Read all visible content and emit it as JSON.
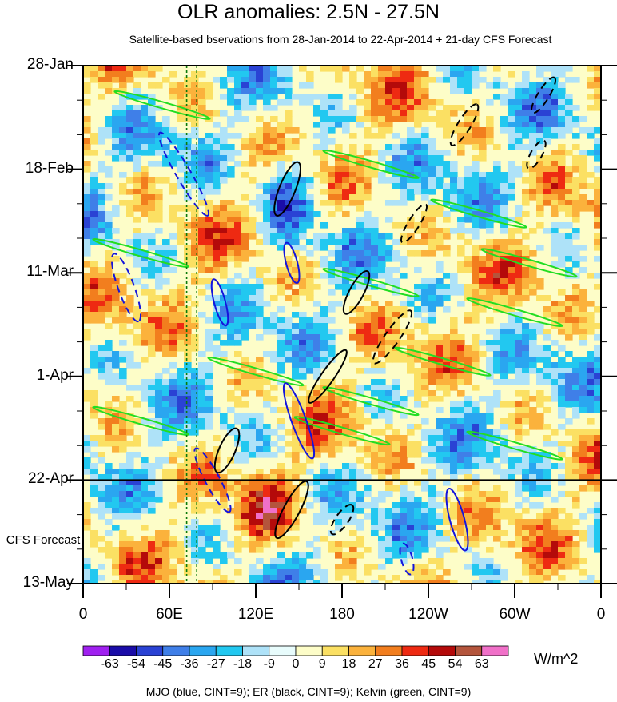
{
  "chart_data": {
    "type": "heatmap",
    "title": "OLR anomalies: 2.5N - 27.5N",
    "subtitle": "Satellite-based bservations from 28-Jan-2014 to 22-Apr-2014 + 21-day CFS Forecast",
    "x_ticks": [
      "0",
      "60E",
      "120E",
      "180",
      "120W",
      "60W",
      "0"
    ],
    "x_range_deg_east": [
      0,
      360
    ],
    "y_ticks": [
      {
        "label": "28-Jan",
        "day": 0
      },
      {
        "label": "18-Feb",
        "day": 21
      },
      {
        "label": "11-Mar",
        "day": 42
      },
      {
        "label": "1-Apr",
        "day": 63
      },
      {
        "label": "22-Apr",
        "day": 84
      },
      {
        "label": "13-May",
        "day": 105
      }
    ],
    "y_range_days": [
      0,
      105
    ],
    "observation_end_day": 84,
    "forecast_label": "CFS Forecast",
    "reference_longitudes_deg_east": [
      72,
      79
    ],
    "colorbar": {
      "units": "W/m^2",
      "tick_labels": [
        "-63",
        "-54",
        "-45",
        "-36",
        "-27",
        "-18",
        "-9",
        "0",
        "9",
        "18",
        "27",
        "36",
        "45",
        "54",
        "63"
      ],
      "colors": [
        "#a020f0",
        "#1a0ca8",
        "#2a42d4",
        "#3f7fe8",
        "#2aa6f0",
        "#22c8f0",
        "#aee2f8",
        "#e8fcfc",
        "#fdfdc8",
        "#fbe063",
        "#fbb23c",
        "#f27e1e",
        "#ee2a12",
        "#b40a0a",
        "#b4553c",
        "#f070c8"
      ]
    },
    "legend_note": "MJO (blue, CINT=9); ER (black, CINT=9); Kelvin (green, CINT=9)",
    "filter_contours": [
      {
        "series": "Kelvin",
        "color": "#22dd22"
      },
      {
        "series": "MJO",
        "color": "#1414dc"
      },
      {
        "series": "ER",
        "color": "#000000"
      }
    ]
  }
}
